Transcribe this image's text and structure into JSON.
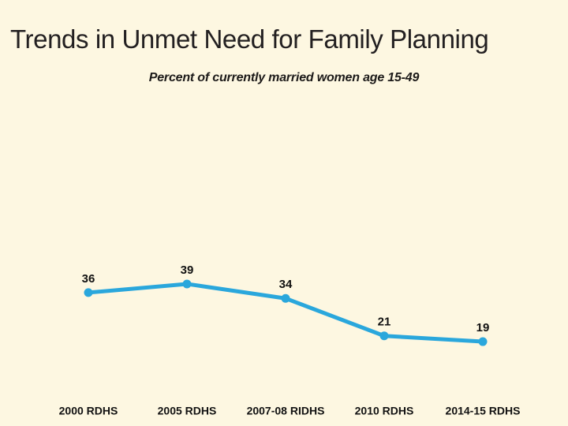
{
  "slide": {
    "title": "Trends in Unmet Need for Family Planning",
    "subtitle": "Percent of currently married women age 15-49"
  },
  "chart_data": {
    "type": "line",
    "categories": [
      "2000 RDHS",
      "2005 RDHS",
      "2007-08 RIDHS",
      "2010 RDHS",
      "2014-15 RDHS"
    ],
    "values": [
      36,
      39,
      34,
      21,
      19
    ],
    "title": "Trends in Unmet Need for Family Planning",
    "subtitle": "Percent of currently married women age 15-49",
    "xlabel": "",
    "ylabel": "",
    "ylim": [
      0,
      45
    ],
    "grid": false,
    "legend": false,
    "data_labels": true,
    "marker": "circle"
  },
  "colors": {
    "background": "#FDF7E1",
    "line": "#2AA7DC",
    "title_text": "#232021",
    "subtitle_text": "#1C1A19",
    "label_text": "#121212"
  }
}
